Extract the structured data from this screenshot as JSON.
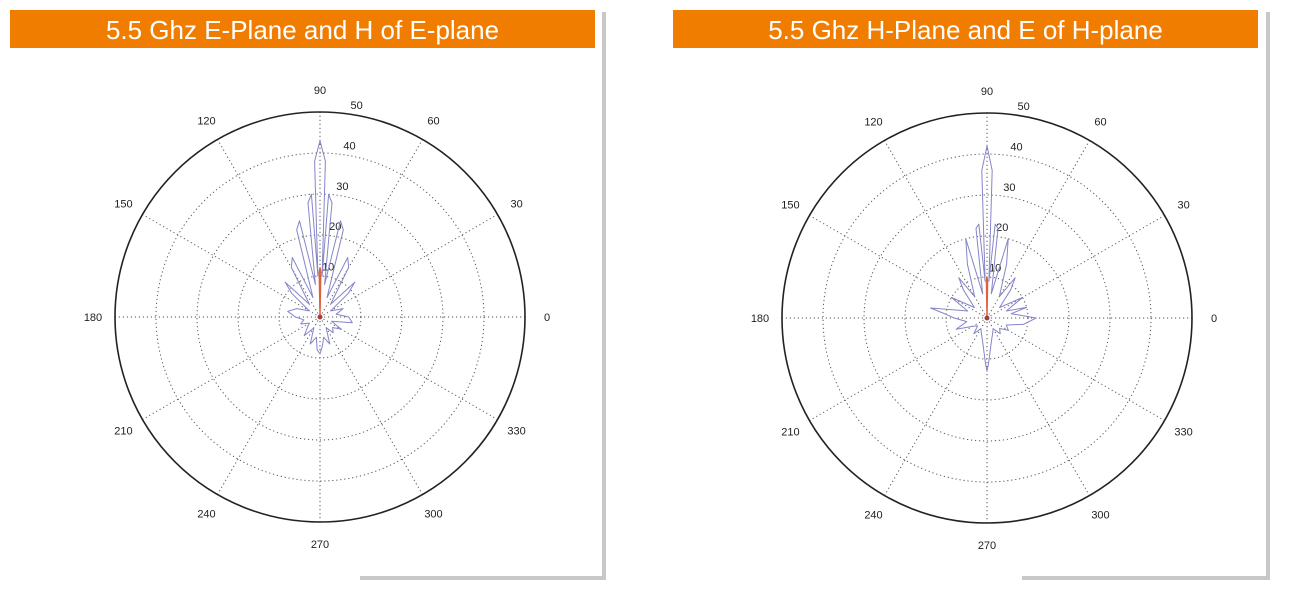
{
  "colors": {
    "title_bg": "#f07d00",
    "title_text": "#ffffff",
    "series_main": "#8585c9",
    "series_cross": "#e0603c",
    "grid": "#555555",
    "shadow": "#c8c8c8"
  },
  "chart_data": [
    {
      "type": "polar",
      "title": "5.5 Ghz E-Plane and H of E-plane",
      "theta_ticks": [
        "0",
        "30",
        "60",
        "90",
        "120",
        "150",
        "180",
        "210",
        "240",
        "270",
        "300",
        "330"
      ],
      "r_ticks": [
        "10",
        "20",
        "30",
        "40",
        "50"
      ],
      "rlim": [
        0,
        50
      ],
      "grid": true,
      "series": [
        {
          "color": "#8585c9",
          "points": [
            [
              0,
              7
            ],
            [
              10,
              4
            ],
            [
              20,
              6
            ],
            [
              30,
              3
            ],
            [
              40,
              9
            ],
            [
              45,
              12
            ],
            [
              50,
              4
            ],
            [
              60,
              14
            ],
            [
              65,
              16
            ],
            [
              70,
              5
            ],
            [
              75,
              22
            ],
            [
              78,
              24
            ],
            [
              82,
              8
            ],
            [
              84,
              28
            ],
            [
              86,
              30
            ],
            [
              87,
              10
            ],
            [
              88,
              38
            ],
            [
              90,
              43
            ],
            [
              92,
              38
            ],
            [
              93,
              10
            ],
            [
              94,
              30
            ],
            [
              96,
              28
            ],
            [
              98,
              8
            ],
            [
              102,
              24
            ],
            [
              105,
              22
            ],
            [
              110,
              5
            ],
            [
              115,
              16
            ],
            [
              120,
              14
            ],
            [
              130,
              4
            ],
            [
              135,
              12
            ],
            [
              140,
              9
            ],
            [
              150,
              3
            ],
            [
              160,
              6
            ],
            [
              170,
              8
            ],
            [
              180,
              6
            ],
            [
              190,
              4
            ],
            [
              200,
              5
            ],
            [
              210,
              3
            ],
            [
              220,
              4
            ],
            [
              230,
              6
            ],
            [
              240,
              3
            ],
            [
              250,
              7
            ],
            [
              260,
              5
            ],
            [
              265,
              8
            ],
            [
              270,
              9
            ],
            [
              275,
              7
            ],
            [
              280,
              5
            ],
            [
              290,
              7
            ],
            [
              300,
              3
            ],
            [
              310,
              5
            ],
            [
              320,
              4
            ],
            [
              330,
              6
            ],
            [
              340,
              3
            ],
            [
              350,
              8
            ]
          ]
        },
        {
          "color": "#e0603c",
          "points": [
            [
              88,
              0
            ],
            [
              89,
              11
            ],
            [
              90,
              12
            ],
            [
              91,
              11
            ],
            [
              92,
              0
            ]
          ]
        }
      ]
    },
    {
      "type": "polar",
      "title": "5.5 Ghz H-Plane and E of H-plane",
      "theta_ticks": [
        "0",
        "30",
        "60",
        "90",
        "120",
        "150",
        "180",
        "210",
        "240",
        "270",
        "300",
        "330"
      ],
      "r_ticks": [
        "10",
        "20",
        "30",
        "40",
        "50"
      ],
      "rlim": [
        0,
        50
      ],
      "grid": true,
      "series": [
        {
          "color": "#8585c9",
          "points": [
            [
              0,
              12
            ],
            [
              10,
              6
            ],
            [
              15,
              10
            ],
            [
              20,
              5
            ],
            [
              30,
              10
            ],
            [
              40,
              4
            ],
            [
              50,
              9
            ],
            [
              55,
              12
            ],
            [
              60,
              6
            ],
            [
              70,
              14
            ],
            [
              75,
              20
            ],
            [
              80,
              6
            ],
            [
              83,
              22
            ],
            [
              85,
              23
            ],
            [
              87,
              9
            ],
            [
              88,
              36
            ],
            [
              90,
              42
            ],
            [
              92,
              36
            ],
            [
              93,
              9
            ],
            [
              95,
              23
            ],
            [
              97,
              22
            ],
            [
              100,
              6
            ],
            [
              105,
              20
            ],
            [
              110,
              14
            ],
            [
              120,
              6
            ],
            [
              125,
              12
            ],
            [
              130,
              9
            ],
            [
              140,
              4
            ],
            [
              150,
              10
            ],
            [
              160,
              5
            ],
            [
              170,
              14
            ],
            [
              175,
              10
            ],
            [
              180,
              8
            ],
            [
              190,
              5
            ],
            [
              200,
              8
            ],
            [
              210,
              4
            ],
            [
              220,
              3
            ],
            [
              230,
              5
            ],
            [
              240,
              3
            ],
            [
              250,
              4
            ],
            [
              260,
              6
            ],
            [
              268,
              11
            ],
            [
              270,
              13
            ],
            [
              272,
              11
            ],
            [
              280,
              6
            ],
            [
              290,
              4
            ],
            [
              300,
              3
            ],
            [
              310,
              5
            ],
            [
              320,
              4
            ],
            [
              330,
              6
            ],
            [
              340,
              5
            ],
            [
              350,
              9
            ]
          ]
        },
        {
          "color": "#e0603c",
          "points": [
            [
              88,
              0
            ],
            [
              89,
              9
            ],
            [
              90,
              10
            ],
            [
              91,
              9
            ],
            [
              92,
              0
            ]
          ]
        }
      ]
    }
  ]
}
